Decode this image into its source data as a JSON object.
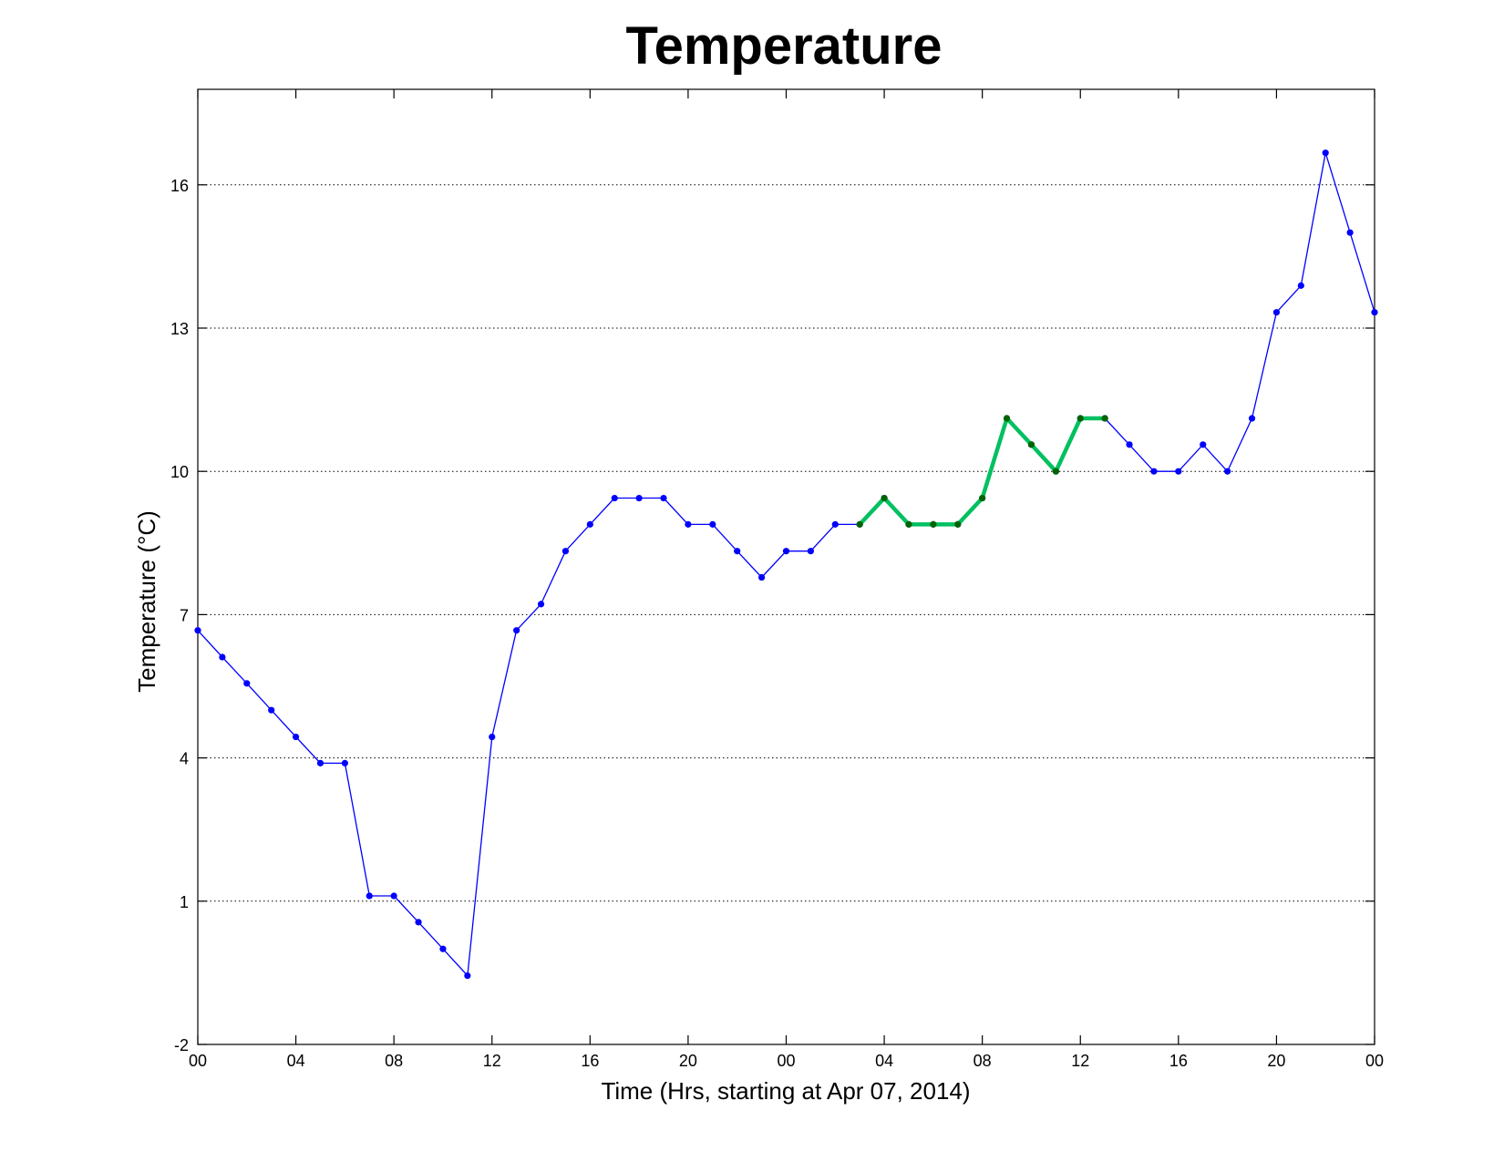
{
  "chart_data": {
    "type": "line",
    "title": "Temperature",
    "xlabel": "Time (Hrs, starting at Apr 07, 2014)",
    "ylabel": "Temperature (°C)",
    "xlim": [
      0,
      48
    ],
    "ylim": [
      -2,
      18
    ],
    "grid": "y-dotted",
    "x_tick_values": [
      0,
      4,
      8,
      12,
      16,
      20,
      24,
      28,
      32,
      36,
      40,
      44,
      48
    ],
    "x_tick_labels": [
      "00",
      "04",
      "08",
      "12",
      "16",
      "20",
      "00",
      "04",
      "08",
      "12",
      "16",
      "20",
      "00"
    ],
    "y_tick_values": [
      -2,
      1,
      4,
      7,
      10,
      13,
      16
    ],
    "y_tick_labels": [
      "-2",
      "1",
      "4",
      "7",
      "10",
      "13",
      "16"
    ],
    "series": [
      {
        "color": "#0000ff",
        "marker_color": "#0000ff",
        "x": [
          0,
          1,
          2,
          3,
          4,
          5,
          6,
          7,
          8,
          9,
          10,
          11,
          12,
          13,
          14,
          15,
          16,
          17,
          18,
          19,
          20,
          21,
          22,
          23,
          24,
          25,
          26,
          27,
          28,
          29,
          30,
          31,
          32,
          33,
          34,
          35,
          36,
          37,
          38,
          39,
          40,
          41,
          42,
          43,
          44,
          45,
          46,
          47,
          48
        ],
        "y": [
          6.67,
          6.11,
          5.56,
          5.0,
          4.44,
          3.89,
          3.89,
          1.11,
          1.11,
          0.56,
          0.0,
          -0.56,
          4.44,
          6.67,
          7.22,
          8.33,
          8.89,
          9.44,
          9.44,
          9.44,
          8.89,
          8.89,
          8.33,
          7.78,
          8.33,
          8.33,
          8.89,
          8.89,
          9.44,
          8.89,
          8.89,
          8.89,
          9.44,
          11.11,
          10.56,
          10.0,
          11.11,
          11.11,
          10.56,
          10.0,
          10.0,
          10.56,
          10.0,
          11.11,
          13.33,
          13.89,
          16.67,
          15.0,
          13.33
        ]
      },
      {
        "color": "#00c060",
        "marker_color": "#006400",
        "x": [
          27,
          28,
          29,
          30,
          31,
          32,
          33,
          34,
          35,
          36,
          37
        ],
        "y": [
          8.89,
          9.44,
          8.89,
          8.89,
          8.89,
          9.44,
          11.11,
          10.56,
          10.0,
          11.11,
          11.11
        ]
      }
    ]
  }
}
